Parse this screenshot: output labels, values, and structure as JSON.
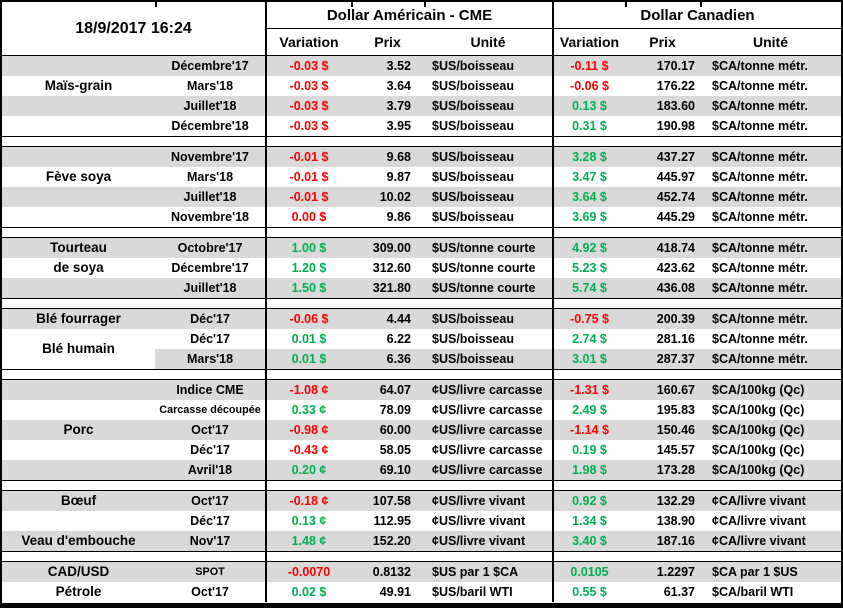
{
  "chart_data": {
    "type": "table",
    "title": "18/9/2017 16:24",
    "header": {
      "usd_group": "Dollar Américain - CME",
      "cad_group": "Dollar Canadien",
      "subcolumns": [
        "Variation",
        "Prix",
        "Unité"
      ]
    },
    "palette": {
      "positive": "#00B050",
      "negative": "#FF0000",
      "row_stripe": "#D9D9D9",
      "border": "#000000"
    },
    "sections": [
      {
        "id": "mais-grain",
        "labels": [
          {
            "lines": [
              "Maïs-grain"
            ],
            "row": 2,
            "span": 1
          }
        ],
        "rows": [
          {
            "month": "Décembre'17",
            "us": {
              "variation": "-0.03 $",
              "trend": "down",
              "prix": "3.52",
              "unite": "$US/boisseau"
            },
            "ca": {
              "variation": "-0.11 $",
              "trend": "down",
              "prix": "170.17",
              "unite": "$CA/tonne métr."
            }
          },
          {
            "month": "Mars'18",
            "us": {
              "variation": "-0.03 $",
              "trend": "down",
              "prix": "3.64",
              "unite": "$US/boisseau"
            },
            "ca": {
              "variation": "-0.06 $",
              "trend": "down",
              "prix": "176.22",
              "unite": "$CA/tonne métr."
            }
          },
          {
            "month": "Juillet'18",
            "us": {
              "variation": "-0.03 $",
              "trend": "down",
              "prix": "3.79",
              "unite": "$US/boisseau"
            },
            "ca": {
              "variation": "0.13 $",
              "trend": "up",
              "prix": "183.60",
              "unite": "$CA/tonne métr."
            }
          },
          {
            "month": "Décembre'18",
            "us": {
              "variation": "-0.03 $",
              "trend": "down",
              "prix": "3.95",
              "unite": "$US/boisseau"
            },
            "ca": {
              "variation": "0.31 $",
              "trend": "up",
              "prix": "190.98",
              "unite": "$CA/tonne métr."
            }
          }
        ]
      },
      {
        "id": "feve-soya",
        "labels": [
          {
            "lines": [
              "Fève soya"
            ],
            "row": 2,
            "span": 1
          }
        ],
        "rows": [
          {
            "month": "Novembre'17",
            "us": {
              "variation": "-0.01 $",
              "trend": "down",
              "prix": "9.68",
              "unite": "$US/boisseau"
            },
            "ca": {
              "variation": "3.28 $",
              "trend": "up",
              "prix": "437.27",
              "unite": "$CA/tonne métr."
            }
          },
          {
            "month": "Mars'18",
            "us": {
              "variation": "-0.01 $",
              "trend": "down",
              "prix": "9.87",
              "unite": "$US/boisseau"
            },
            "ca": {
              "variation": "3.47 $",
              "trend": "up",
              "prix": "445.97",
              "unite": "$CA/tonne métr."
            }
          },
          {
            "month": "Juillet'18",
            "us": {
              "variation": "-0.01 $",
              "trend": "down",
              "prix": "10.02",
              "unite": "$US/boisseau"
            },
            "ca": {
              "variation": "3.64 $",
              "trend": "up",
              "prix": "452.74",
              "unite": "$CA/tonne métr."
            }
          },
          {
            "month": "Novembre'18",
            "us": {
              "variation": "0.00 $",
              "trend": "down",
              "prix": "9.86",
              "unite": "$US/boisseau"
            },
            "ca": {
              "variation": "3.69 $",
              "trend": "up",
              "prix": "445.29",
              "unite": "$CA/tonne métr."
            }
          }
        ]
      },
      {
        "id": "tourteau-de-soya",
        "labels": [
          {
            "lines": [
              "Tourteau",
              "de soya"
            ],
            "row": 1,
            "span": 2
          }
        ],
        "rows": [
          {
            "month": "Octobre'17",
            "us": {
              "variation": "1.00 $",
              "trend": "up",
              "prix": "309.00",
              "unite": "$US/tonne courte"
            },
            "ca": {
              "variation": "4.92 $",
              "trend": "up",
              "prix": "418.74",
              "unite": "$CA/tonne métr."
            }
          },
          {
            "month": "Décembre'17",
            "us": {
              "variation": "1.20 $",
              "trend": "up",
              "prix": "312.60",
              "unite": "$US/tonne courte"
            },
            "ca": {
              "variation": "5.23 $",
              "trend": "up",
              "prix": "423.62",
              "unite": "$CA/tonne métr."
            }
          },
          {
            "month": "Juillet'18",
            "us": {
              "variation": "1.50 $",
              "trend": "up",
              "prix": "321.80",
              "unite": "$US/tonne courte"
            },
            "ca": {
              "variation": "5.74 $",
              "trend": "up",
              "prix": "436.08",
              "unite": "$CA/tonne métr."
            }
          }
        ]
      },
      {
        "id": "ble",
        "labels": [
          {
            "lines": [
              "Blé fourrager"
            ],
            "row": 1,
            "span": 1
          },
          {
            "lines": [
              "Blé humain"
            ],
            "row": 2,
            "span": 2,
            "bg": "#FFFFFF"
          }
        ],
        "rows": [
          {
            "month": "Déc'17",
            "us": {
              "variation": "-0.06 $",
              "trend": "down",
              "prix": "4.44",
              "unite": "$US/boisseau"
            },
            "ca": {
              "variation": "-0.75 $",
              "trend": "down",
              "prix": "200.39",
              "unite": "$CA/tonne métr."
            }
          },
          {
            "month": "Déc'17",
            "us": {
              "variation": "0.01 $",
              "trend": "up",
              "prix": "6.22",
              "unite": "$US/boisseau"
            },
            "ca": {
              "variation": "2.74 $",
              "trend": "up",
              "prix": "281.16",
              "unite": "$CA/tonne métr."
            }
          },
          {
            "month": "Mars'18",
            "us": {
              "variation": "0.01 $",
              "trend": "up",
              "prix": "6.36",
              "unite": "$US/boisseau"
            },
            "ca": {
              "variation": "3.01 $",
              "trend": "up",
              "prix": "287.37",
              "unite": "$CA/tonne métr."
            }
          }
        ]
      },
      {
        "id": "porc",
        "labels": [
          {
            "lines": [
              "Porc"
            ],
            "row": 3,
            "span": 1
          }
        ],
        "rows": [
          {
            "month": "Indice CME",
            "us": {
              "variation": "-1.08 ¢",
              "trend": "down",
              "prix": "64.07",
              "unite": "¢US/livre carcasse"
            },
            "ca": {
              "variation": "-1.31 $",
              "trend": "down",
              "prix": "160.67",
              "unite": "$CA/100kg (Qc)"
            }
          },
          {
            "month": "Carcasse découpée",
            "small": true,
            "us": {
              "variation": "0.33 ¢",
              "trend": "up",
              "prix": "78.09",
              "unite": "¢US/livre carcasse"
            },
            "ca": {
              "variation": "2.49 $",
              "trend": "up",
              "prix": "195.83",
              "unite": "$CA/100kg (Qc)"
            }
          },
          {
            "month": "Oct'17",
            "us": {
              "variation": "-0.98 ¢",
              "trend": "down",
              "prix": "60.00",
              "unite": "¢US/livre carcasse"
            },
            "ca": {
              "variation": "-1.14 $",
              "trend": "down",
              "prix": "150.46",
              "unite": "$CA/100kg (Qc)"
            }
          },
          {
            "month": "Déc'17",
            "us": {
              "variation": "-0.43 ¢",
              "trend": "down",
              "prix": "58.05",
              "unite": "¢US/livre carcasse"
            },
            "ca": {
              "variation": "0.19 $",
              "trend": "up",
              "prix": "145.57",
              "unite": "$CA/100kg (Qc)"
            }
          },
          {
            "month": "Avril'18",
            "us": {
              "variation": "0.20 ¢",
              "trend": "up",
              "prix": "69.10",
              "unite": "¢US/livre carcasse"
            },
            "ca": {
              "variation": "1.98 $",
              "trend": "up",
              "prix": "173.28",
              "unite": "$CA/100kg (Qc)"
            }
          }
        ]
      },
      {
        "id": "boeuf-veau",
        "labels": [
          {
            "lines": [
              "Bœuf"
            ],
            "row": 1,
            "span": 1
          },
          {
            "lines": [
              "Veau d'embouche"
            ],
            "row": 3,
            "span": 1
          }
        ],
        "rows": [
          {
            "month": "Oct'17",
            "us": {
              "variation": "-0.18 ¢",
              "trend": "down",
              "prix": "107.58",
              "unite": "¢US/livre vivant"
            },
            "ca": {
              "variation": "0.92 $",
              "trend": "up",
              "prix": "132.29",
              "unite": "¢CA/livre vivant"
            }
          },
          {
            "month": "Déc'17",
            "us": {
              "variation": "0.13 ¢",
              "trend": "up",
              "prix": "112.95",
              "unite": "¢US/livre vivant"
            },
            "ca": {
              "variation": "1.34 $",
              "trend": "up",
              "prix": "138.90",
              "unite": "¢CA/livre vivant"
            }
          },
          {
            "month": "Nov'17",
            "us": {
              "variation": "1.48 ¢",
              "trend": "up",
              "prix": "152.20",
              "unite": "¢US/livre vivant"
            },
            "ca": {
              "variation": "3.40 $",
              "trend": "up",
              "prix": "187.16",
              "unite": "¢CA/livre vivant"
            }
          }
        ]
      },
      {
        "id": "cadusd-petrole",
        "labels": [
          {
            "lines": [
              "CAD/USD"
            ],
            "row": 1,
            "span": 1
          },
          {
            "lines": [
              "Pétrole"
            ],
            "row": 2,
            "span": 1
          }
        ],
        "rows": [
          {
            "month": "SPOT",
            "small": true,
            "us": {
              "variation": "-0.0070",
              "trend": "down",
              "prix": "0.8132",
              "unite": "$US par 1 $CA"
            },
            "ca": {
              "variation": "0.0105",
              "trend": "up",
              "prix": "1.2297",
              "unite": "$CA par 1 $US"
            }
          },
          {
            "month": "Oct'17",
            "us": {
              "variation": "0.02 $",
              "trend": "up",
              "prix": "49.91",
              "unite": "$US/baril WTI"
            },
            "ca": {
              "variation": "0.55 $",
              "trend": "up",
              "prix": "61.37",
              "unite": "$CA/baril WTI"
            }
          }
        ]
      }
    ]
  }
}
